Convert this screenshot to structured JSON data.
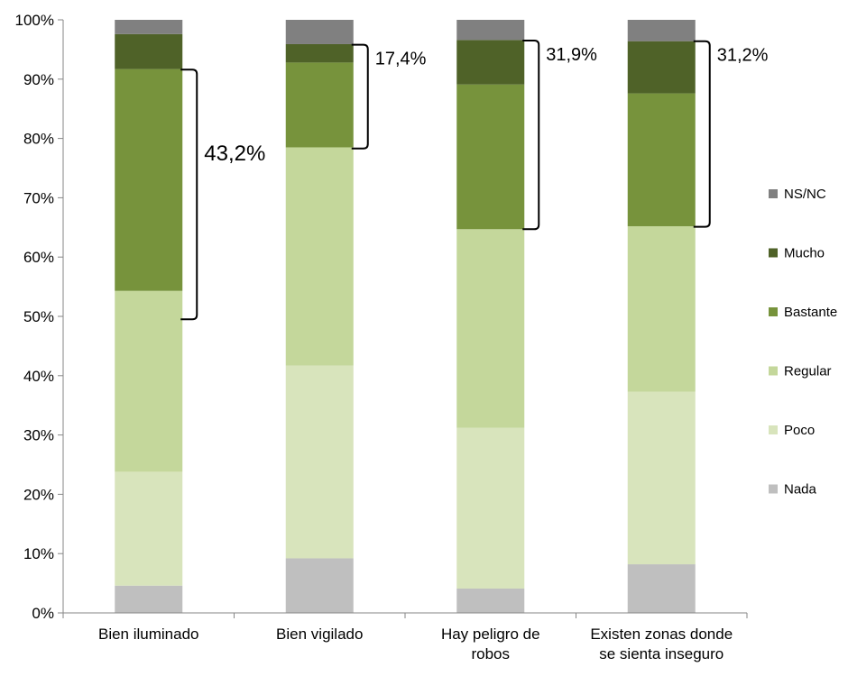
{
  "chart_data": {
    "type": "bar",
    "stacked": true,
    "categories": [
      [
        "Bien iluminado"
      ],
      [
        "Bien vigilado"
      ],
      [
        "Hay peligro de",
        "robos"
      ],
      [
        "Existen zonas donde",
        "se sienta inseguro"
      ]
    ],
    "y_ticks": [
      "0%",
      "10%",
      "20%",
      "30%",
      "40%",
      "50%",
      "60%",
      "70%",
      "80%",
      "90%",
      "100%"
    ],
    "ylim": [
      0,
      100
    ],
    "series": [
      {
        "name": "Nada",
        "color": "#bfbfbf",
        "values": [
          4.6,
          9.2,
          4.1,
          8.2
        ]
      },
      {
        "name": "Poco",
        "color": "#d8e4bc",
        "values": [
          19.2,
          32.5,
          27.1,
          29.1
        ]
      },
      {
        "name": "Regular",
        "color": "#c4d79b",
        "values": [
          30.5,
          36.8,
          33.5,
          27.9
        ]
      },
      {
        "name": "Bastante",
        "color": "#77933c",
        "values": [
          37.4,
          14.3,
          24.4,
          22.4
        ]
      },
      {
        "name": "Mucho",
        "color": "#4f6228",
        "values": [
          5.9,
          3.1,
          7.5,
          8.8
        ]
      },
      {
        "name": "NS/NC",
        "color": "#808080",
        "values": [
          2.4,
          4.1,
          3.4,
          3.6
        ]
      }
    ],
    "legend_position": "right",
    "annotations": [
      {
        "category_index": 0,
        "text": "43,2%",
        "from": 49.5,
        "to": 91.6
      },
      {
        "category_index": 1,
        "text": "17,4%",
        "from": 78.3,
        "to": 95.8
      },
      {
        "category_index": 2,
        "text": "31,9%",
        "from": 64.7,
        "to": 96.5
      },
      {
        "category_index": 3,
        "text": "31,2%",
        "from": 65.1,
        "to": 96.4
      }
    ]
  }
}
